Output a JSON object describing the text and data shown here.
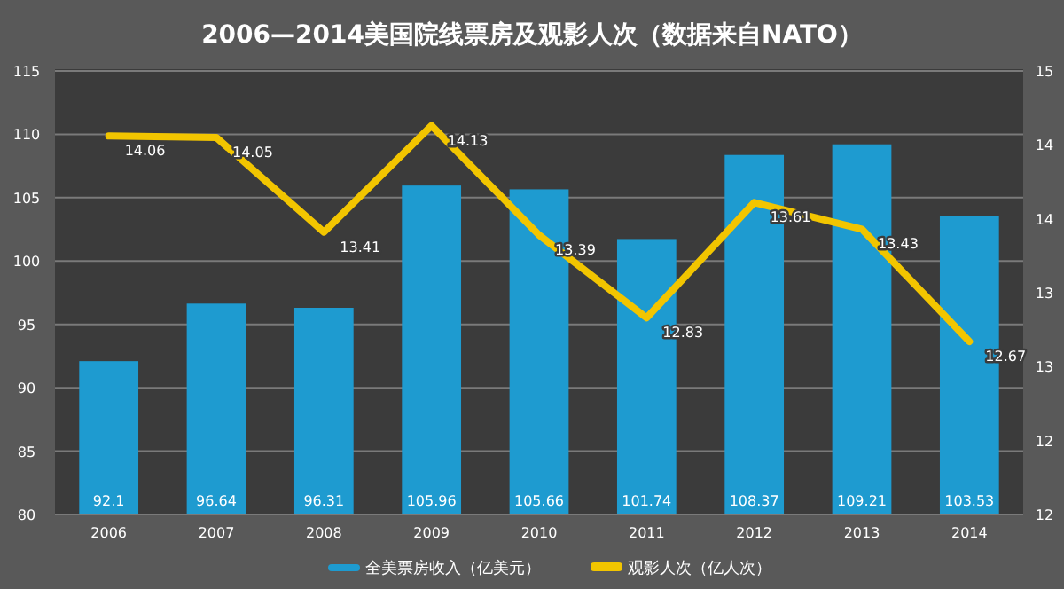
{
  "chart_data": {
    "type": "bar",
    "title": "2006—2014美国院线票房及观影人次（数据来自NATO）",
    "categories": [
      "2006",
      "2007",
      "2008",
      "2009",
      "2010",
      "2011",
      "2012",
      "2013",
      "2014"
    ],
    "series": [
      {
        "name": "全美票房收入（亿美元）",
        "color": "#1e9bd0",
        "values": [
          92.1,
          96.64,
          96.31,
          105.96,
          105.66,
          101.74,
          108.37,
          109.21,
          103.53
        ]
      },
      {
        "name": "观影人次（亿人次）",
        "type": "line",
        "axis": "y2",
        "color": "#f2c500",
        "values": [
          14.06,
          14.05,
          13.41,
          14.13,
          13.39,
          12.83,
          13.61,
          13.43,
          12.67
        ]
      }
    ],
    "ylim": [
      80,
      115
    ],
    "yticks": [
      80,
      85,
      90,
      95,
      100,
      105,
      110,
      115
    ],
    "y2lim": [
      11.5,
      14.5
    ],
    "y2ticks": [
      {
        "value": 11.5,
        "label": "12"
      },
      {
        "value": 12,
        "label": "12"
      },
      {
        "value": 12.5,
        "label": "13"
      },
      {
        "value": 13,
        "label": "13"
      },
      {
        "value": 13.5,
        "label": "14"
      },
      {
        "value": 14,
        "label": "14"
      },
      {
        "value": 14.5,
        "label": "15"
      }
    ],
    "grid": "y",
    "legend": "bottom",
    "data_labels": true,
    "marker": "none",
    "line_style": "solid"
  }
}
